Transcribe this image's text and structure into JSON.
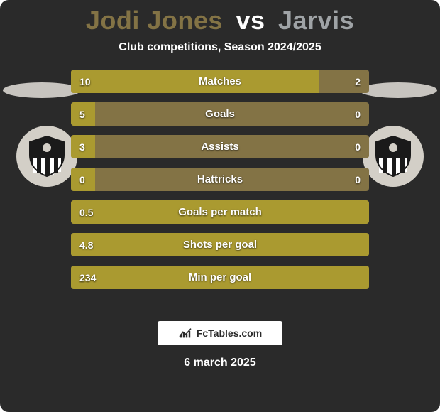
{
  "colors": {
    "background": "#2a2a2a",
    "text": "#ffffff",
    "player1": "#837345",
    "player2": "#9fa3a6",
    "bar_bg": "#837345",
    "bar_fill": "#aa9a30",
    "ellipse": "#c7c4bf",
    "crest_outer": "#d3cfc7",
    "crest_ring": "#2a2a2a",
    "brand_border": "#ffffff"
  },
  "title": {
    "p1": "Jodi Jones",
    "vs": "vs",
    "p2": "Jarvis",
    "p1_color": "#837345",
    "p2_color": "#9fa3a6",
    "vs_color": "#ffffff",
    "fontsize": 36
  },
  "subtitle": {
    "text": "Club competitions, Season 2024/2025",
    "fontsize": 16
  },
  "rows": [
    {
      "label": "Matches",
      "left": "10",
      "right": "2",
      "fill_pct": 83
    },
    {
      "label": "Goals",
      "left": "5",
      "right": "0",
      "fill_pct": 8
    },
    {
      "label": "Assists",
      "left": "3",
      "right": "0",
      "fill_pct": 8
    },
    {
      "label": "Hattricks",
      "left": "0",
      "right": "0",
      "fill_pct": 8
    },
    {
      "label": "Goals per match",
      "left": "0.5",
      "right": "",
      "fill_pct": 100
    },
    {
      "label": "Shots per goal",
      "left": "4.8",
      "right": "",
      "fill_pct": 100
    },
    {
      "label": "Min per goal",
      "left": "234",
      "right": "",
      "fill_pct": 100
    }
  ],
  "bar": {
    "height": 33,
    "gap": 13,
    "radius": 4,
    "label_fontsize": 15,
    "value_fontsize": 14
  },
  "brand": {
    "text": "FcTables.com"
  },
  "date": {
    "text": "6 march 2025"
  },
  "crest": {
    "outer": "#d3cfc7",
    "body_top": "#1a1a1a",
    "stripe_light": "#ffffff",
    "stripe_dark": "#1a1a1a"
  }
}
